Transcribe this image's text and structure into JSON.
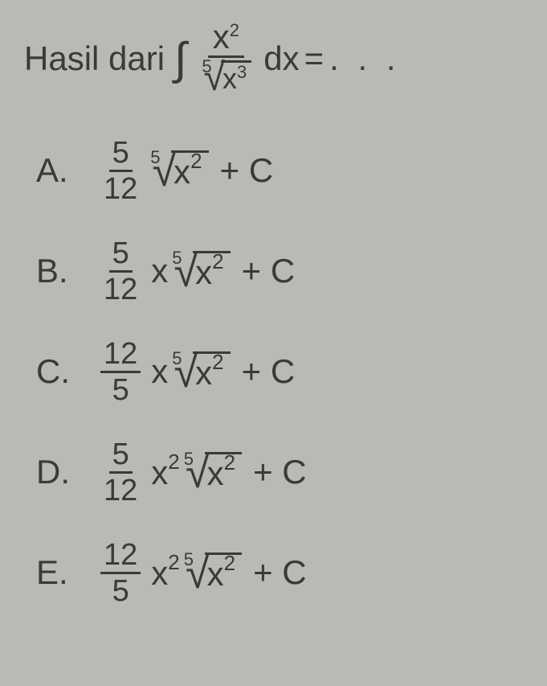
{
  "question": {
    "prefix": "Hasil dari",
    "integral_symbol": "∫",
    "numerator_base": "x",
    "numerator_exp": "2",
    "root_index": "5",
    "root_base": "x",
    "root_exp": "3",
    "dx": "dx",
    "equals": "=",
    "dots": ". . ."
  },
  "options": {
    "A": {
      "label": "A.",
      "frac_num": "5",
      "frac_den": "12",
      "root_index": "5",
      "radicand_base": "x",
      "radicand_exp": "2",
      "plus_c": "+ C"
    },
    "B": {
      "label": "B.",
      "frac_num": "5",
      "frac_den": "12",
      "x_term": "x",
      "root_index": "5",
      "radicand_base": "x",
      "radicand_exp": "2",
      "plus_c": "+ C"
    },
    "C": {
      "label": "C.",
      "frac_num": "12",
      "frac_den": "5",
      "x_term": "x",
      "root_index": "5",
      "radicand_base": "x",
      "radicand_exp": "2",
      "plus_c": "+ C"
    },
    "D": {
      "label": "D.",
      "frac_num": "5",
      "frac_den": "12",
      "x_term": "x",
      "x_exp": "2",
      "root_index": "5",
      "radicand_base": "x",
      "radicand_exp": "2",
      "plus_c": "+ C"
    },
    "E": {
      "label": "E.",
      "frac_num": "12",
      "frac_den": "5",
      "x_term": "x",
      "x_exp": "2",
      "root_index": "5",
      "radicand_base": "x",
      "radicand_exp": "2",
      "plus_c": "+ C"
    }
  }
}
